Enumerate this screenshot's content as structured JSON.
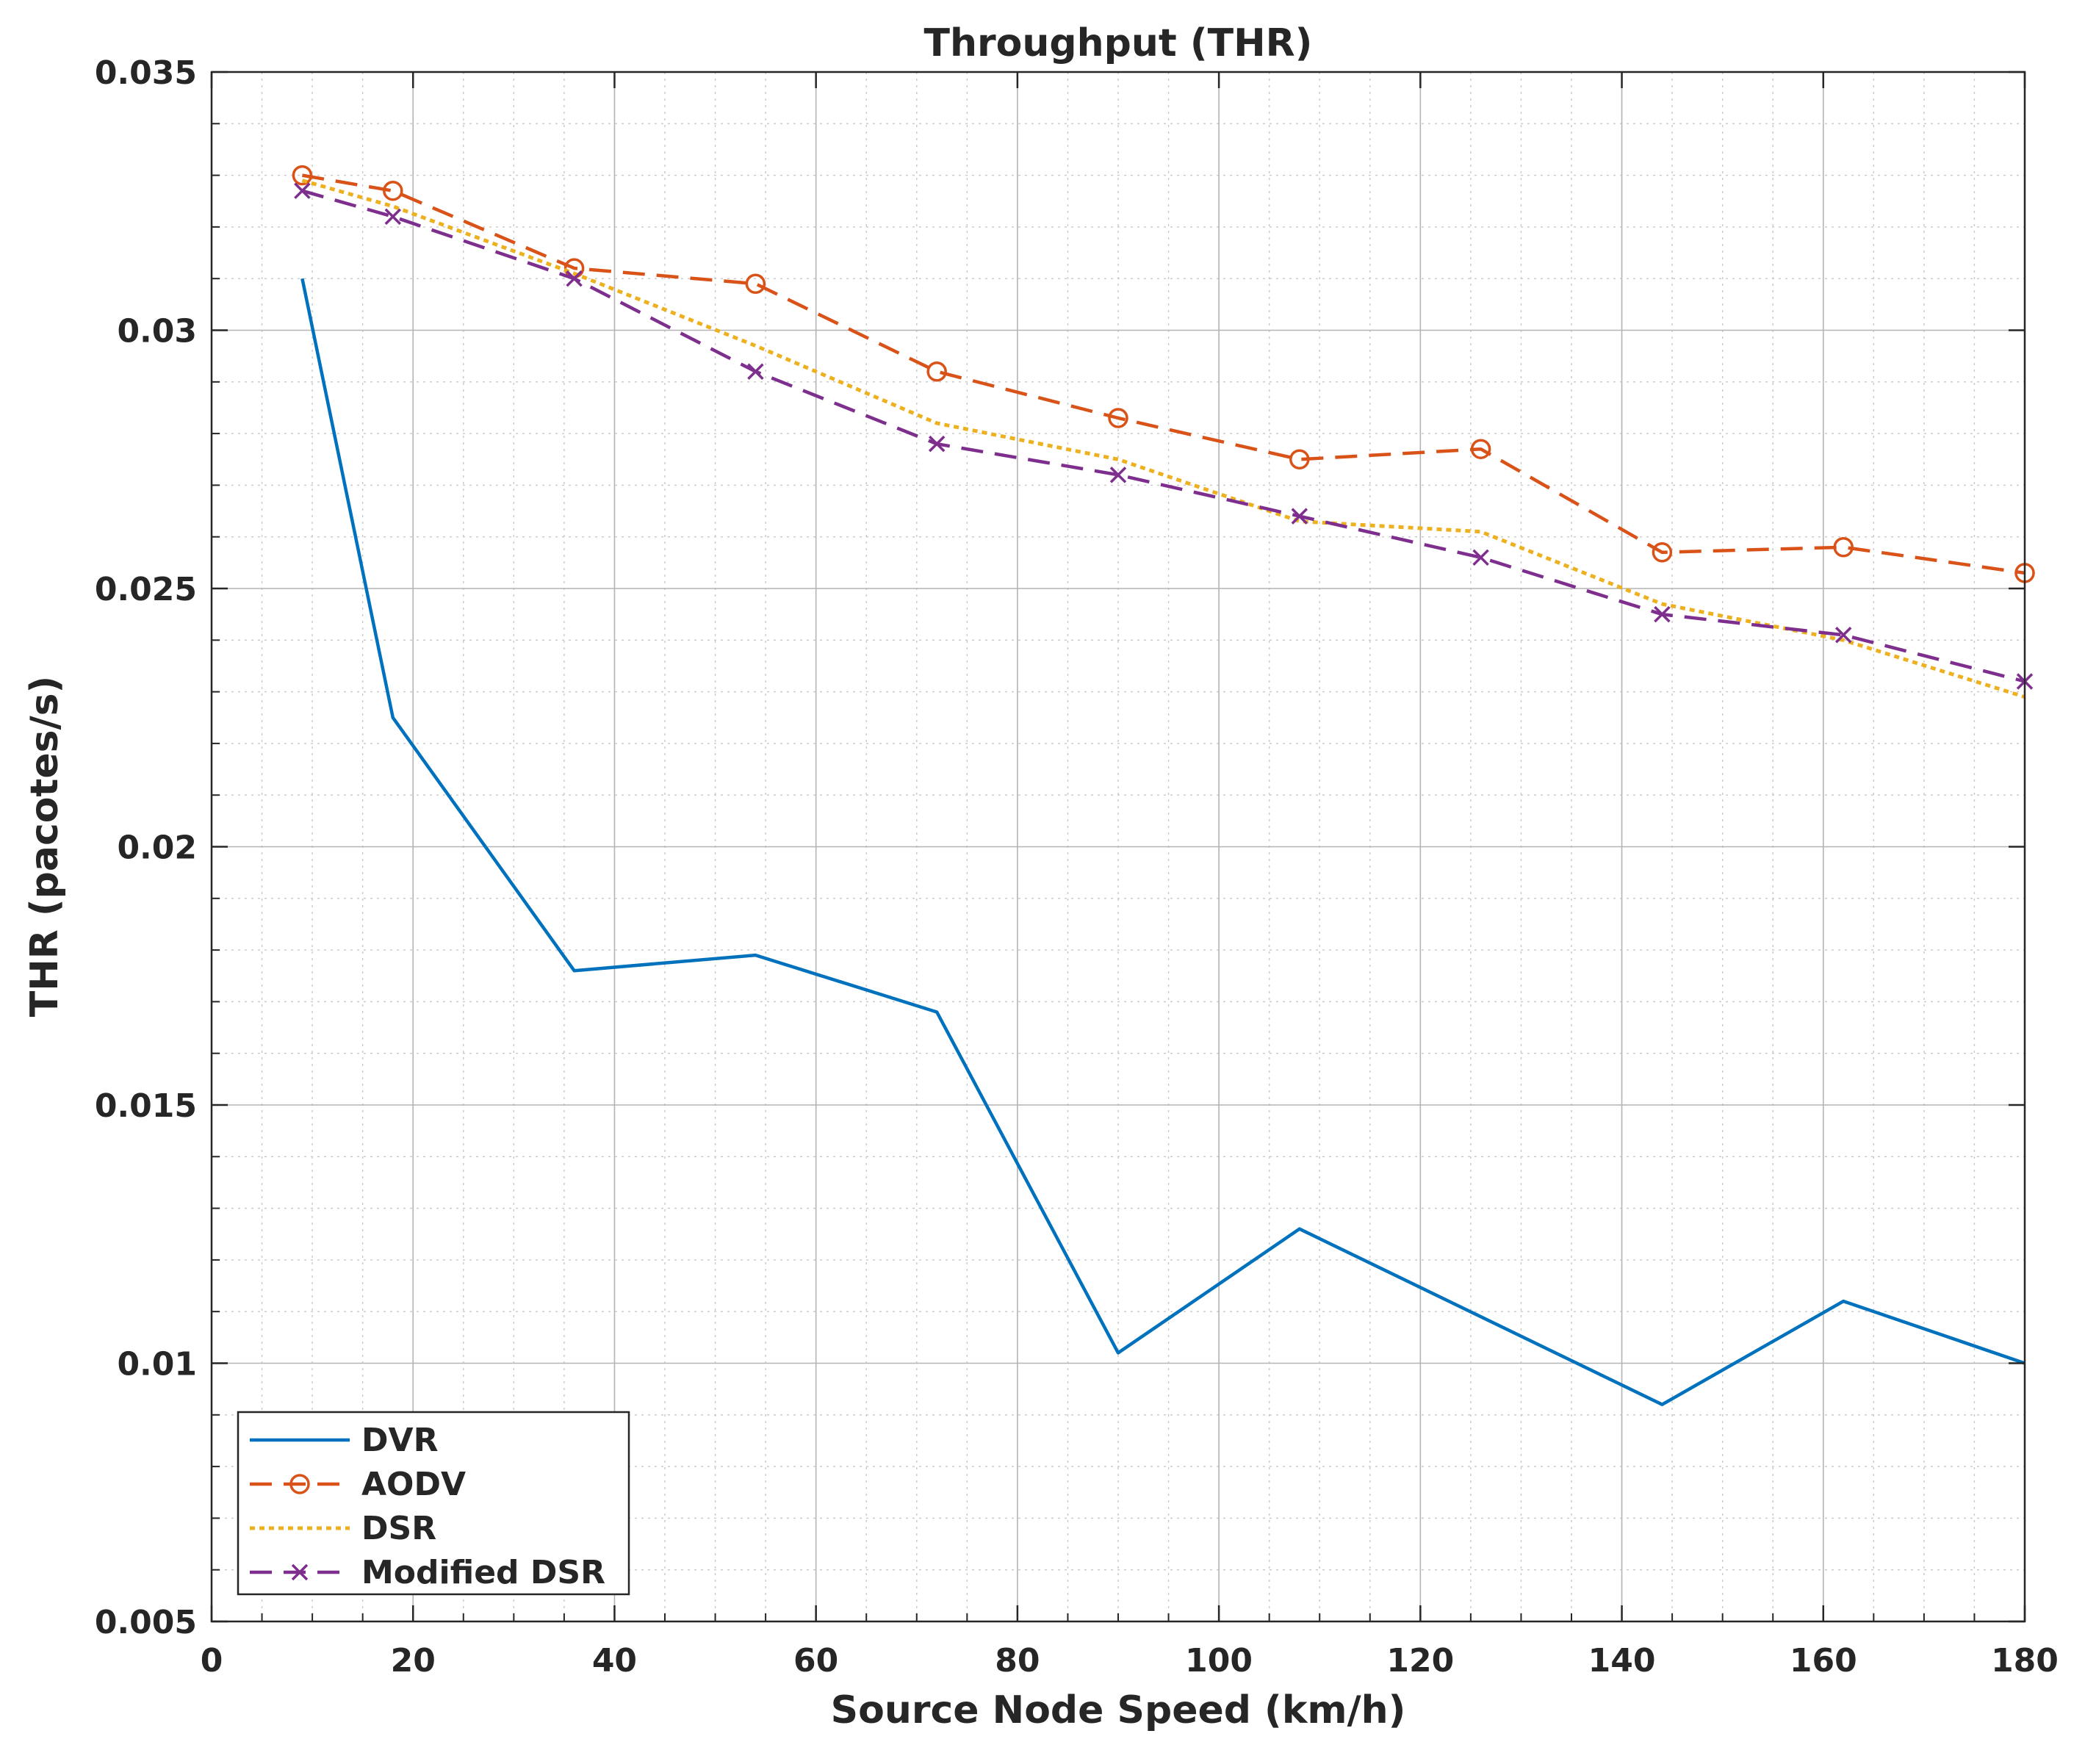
{
  "chart_data": {
    "type": "line",
    "title": "Throughput (THR)",
    "xlabel": "Source Node Speed (km/h)",
    "ylabel": "THR (pacotes/s)",
    "xlim": [
      0,
      180
    ],
    "ylim": [
      0.005,
      0.035
    ],
    "xticks": [
      0,
      20,
      40,
      60,
      80,
      100,
      120,
      140,
      160,
      180
    ],
    "xtick_labels": [
      "0",
      "20",
      "40",
      "60",
      "80",
      "100",
      "120",
      "140",
      "160",
      "180"
    ],
    "yticks": [
      0.005,
      0.01,
      0.015,
      0.02,
      0.025,
      0.03,
      0.035
    ],
    "ytick_labels": [
      "0.005",
      "0.01",
      "0.015",
      "0.02",
      "0.025",
      "0.03",
      "0.035"
    ],
    "grid": true,
    "minor_grid": true,
    "legend_position": "bottom-left",
    "x": [
      9,
      18,
      36,
      54,
      72,
      90,
      108,
      126,
      144,
      162,
      180
    ],
    "series": [
      {
        "name": "DVR",
        "color": "#0072BD",
        "line_style": "solid",
        "marker": "none",
        "values": [
          0.031,
          0.0225,
          0.0176,
          0.0179,
          0.0168,
          0.0102,
          0.0126,
          0.0109,
          0.0092,
          0.0112,
          0.01
        ]
      },
      {
        "name": "AODV",
        "color": "#D95319",
        "line_style": "dashed",
        "marker": "circle",
        "values": [
          0.033,
          0.0327,
          0.0312,
          0.0309,
          0.0292,
          0.0283,
          0.0275,
          0.0277,
          0.0257,
          0.0258,
          0.0253
        ]
      },
      {
        "name": "DSR",
        "color": "#EDB120",
        "line_style": "dotted",
        "marker": "none",
        "values": [
          0.0329,
          0.0324,
          0.0311,
          0.0297,
          0.0282,
          0.0275,
          0.0263,
          0.0261,
          0.0247,
          0.024,
          0.0229
        ]
      },
      {
        "name": "Modified DSR",
        "color": "#7E2F8E",
        "line_style": "dashed",
        "marker": "x",
        "values": [
          0.0327,
          0.0322,
          0.031,
          0.0292,
          0.0278,
          0.0272,
          0.0264,
          0.0256,
          0.0245,
          0.0241,
          0.0232
        ]
      }
    ]
  }
}
